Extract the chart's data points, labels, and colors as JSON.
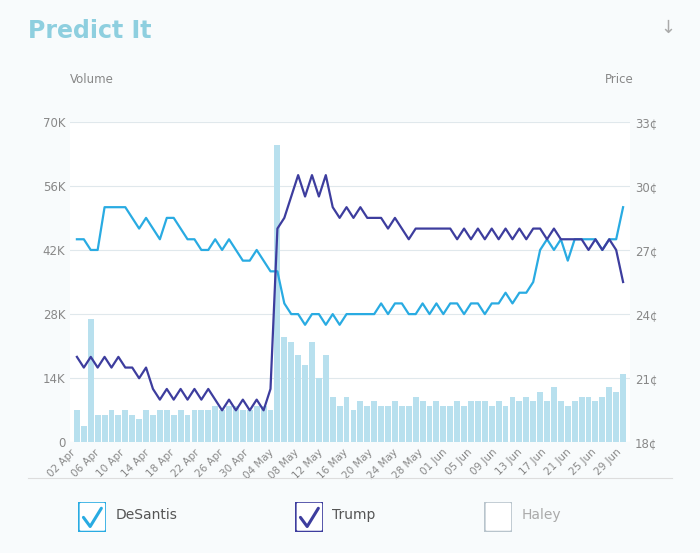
{
  "logo_text": "Predict It",
  "volume_label": "Volume",
  "price_label": "Price",
  "left_yticks_labels": [
    "0",
    "14K",
    "28K",
    "42K",
    "56K",
    "70K"
  ],
  "left_yticks_vals": [
    0,
    14000,
    28000,
    42000,
    56000,
    70000
  ],
  "left_ylim": [
    0,
    70000
  ],
  "right_yticks_labels": [
    "18¢",
    "21¢",
    "24¢",
    "27¢",
    "30¢",
    "33¢"
  ],
  "right_yticks_vals": [
    18,
    21,
    24,
    27,
    30,
    33
  ],
  "right_ylim": [
    18,
    33
  ],
  "xtick_labels": [
    "02 Apr",
    "06 Apr",
    "10 Apr",
    "14 Apr",
    "18 Apr",
    "22 Apr",
    "26 Apr",
    "30 Apr",
    "04 May",
    "08 May",
    "12 May",
    "16 May",
    "20 May",
    "24 May",
    "28 May",
    "01 Jun",
    "05 Jun",
    "09 Jun",
    "13 Jun",
    "17 Jun",
    "21 Jun",
    "25 Jun",
    "29 Jun"
  ],
  "bar_color": "#b8e0ee",
  "desantis_color": "#29abe2",
  "trump_color": "#3d3d9e",
  "haley_color": "#c0c8d0",
  "background_color": "#f8fbfc",
  "plot_background": "#ffffff",
  "grid_color": "#e0e8ec",
  "bar_volumes": [
    7000,
    3500,
    27000,
    6000,
    6000,
    7000,
    6000,
    7000,
    6000,
    5000,
    7000,
    6000,
    7000,
    7000,
    6000,
    7000,
    6000,
    7000,
    7000,
    7000,
    8000,
    7000,
    8000,
    8000,
    7000,
    7000,
    8000,
    8000,
    7000,
    65000,
    23000,
    22000,
    19000,
    17000,
    22000,
    14000,
    19000,
    10000,
    8000,
    10000,
    7000,
    9000,
    8000,
    9000,
    8000,
    8000,
    9000,
    8000,
    8000,
    10000,
    9000,
    8000,
    9000,
    8000,
    8000,
    9000,
    8000,
    9000,
    9000,
    9000,
    8000,
    9000,
    8000,
    10000,
    9000,
    10000,
    9000,
    11000,
    9000,
    12000,
    9000,
    8000,
    9000,
    10000,
    10000,
    9000,
    10000,
    12000,
    11000,
    15000
  ],
  "desantis_prices": [
    27.5,
    27.5,
    27.0,
    27.0,
    29.0,
    29.0,
    29.0,
    29.0,
    28.5,
    28.0,
    28.5,
    28.0,
    27.5,
    28.5,
    28.5,
    28.0,
    27.5,
    27.5,
    27.0,
    27.0,
    27.5,
    27.0,
    27.5,
    27.0,
    26.5,
    26.5,
    27.0,
    26.5,
    26.0,
    26.0,
    24.5,
    24.0,
    24.0,
    23.5,
    24.0,
    24.0,
    23.5,
    24.0,
    23.5,
    24.0,
    24.0,
    24.0,
    24.0,
    24.0,
    24.5,
    24.0,
    24.5,
    24.5,
    24.0,
    24.0,
    24.5,
    24.0,
    24.5,
    24.0,
    24.5,
    24.5,
    24.0,
    24.5,
    24.5,
    24.0,
    24.5,
    24.5,
    25.0,
    24.5,
    25.0,
    25.0,
    25.5,
    27.0,
    27.5,
    27.0,
    27.5,
    26.5,
    27.5,
    27.5,
    27.5,
    27.5,
    27.0,
    27.5,
    27.5,
    29.0
  ],
  "trump_prices": [
    22.0,
    21.5,
    22.0,
    21.5,
    22.0,
    21.5,
    22.0,
    21.5,
    21.5,
    21.0,
    21.5,
    20.5,
    20.0,
    20.5,
    20.0,
    20.5,
    20.0,
    20.5,
    20.0,
    20.5,
    20.0,
    19.5,
    20.0,
    19.5,
    20.0,
    19.5,
    20.0,
    19.5,
    20.5,
    28.0,
    28.5,
    29.5,
    30.5,
    29.5,
    30.5,
    29.5,
    30.5,
    29.0,
    28.5,
    29.0,
    28.5,
    29.0,
    28.5,
    28.5,
    28.5,
    28.0,
    28.5,
    28.0,
    27.5,
    28.0,
    28.0,
    28.0,
    28.0,
    28.0,
    28.0,
    27.5,
    28.0,
    27.5,
    28.0,
    27.5,
    28.0,
    27.5,
    28.0,
    27.5,
    28.0,
    27.5,
    28.0,
    28.0,
    27.5,
    28.0,
    27.5,
    27.5,
    27.5,
    27.5,
    27.0,
    27.5,
    27.0,
    27.5,
    27.0,
    25.5
  ],
  "legend_items": [
    {
      "label": "DeSantis",
      "color": "#29abe2",
      "checked": true
    },
    {
      "label": "Trump",
      "color": "#3d3d9e",
      "checked": true
    },
    {
      "label": "Haley",
      "color": "#b8c4cc",
      "checked": false
    }
  ],
  "n_bars": 80,
  "figsize": [
    7.0,
    5.53
  ],
  "dpi": 100
}
